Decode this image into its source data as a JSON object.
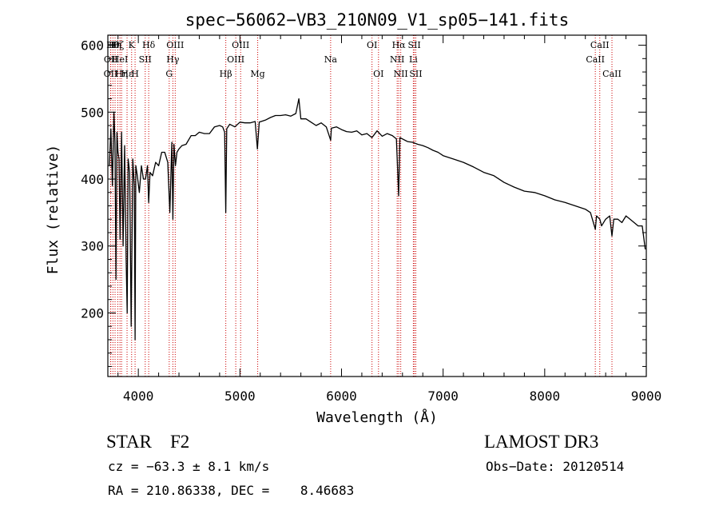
{
  "chart_data": {
    "type": "line",
    "title": "spec−56062−VB3_210N09_V1_sp05−141.fits",
    "xlabel": "Wavelength (Å)",
    "ylabel": "Flux (relative)",
    "xlim": [
      3700,
      9000
    ],
    "ylim": [
      105,
      615
    ],
    "xticks": [
      4000,
      5000,
      6000,
      7000,
      8000,
      9000
    ],
    "yticks": [
      200,
      300,
      400,
      500,
      600
    ],
    "x_minor_step": 200,
    "y_minor_step": 20,
    "line_color": "#000000",
    "marker_color": "#cc0000",
    "series": [
      {
        "name": "spectrum",
        "x": [
          3715,
          3730,
          3745,
          3760,
          3770,
          3780,
          3790,
          3800,
          3810,
          3820,
          3835,
          3850,
          3865,
          3880,
          3890,
          3900,
          3915,
          3930,
          3945,
          3960,
          3968,
          3975,
          3990,
          4010,
          4030,
          4050,
          4070,
          4090,
          4102,
          4115,
          4140,
          4170,
          4200,
          4230,
          4260,
          4290,
          4310,
          4330,
          4340,
          4350,
          4365,
          4380,
          4400,
          4430,
          4470,
          4520,
          4560,
          4600,
          4650,
          4700,
          4750,
          4800,
          4830,
          4850,
          4861,
          4870,
          4900,
          4950,
          5000,
          5050,
          5100,
          5150,
          5172,
          5190,
          5250,
          5300,
          5350,
          5400,
          5450,
          5500,
          5550,
          5580,
          5600,
          5650,
          5700,
          5750,
          5800,
          5850,
          5893,
          5900,
          5950,
          6000,
          6050,
          6100,
          6150,
          6200,
          6250,
          6300,
          6350,
          6400,
          6450,
          6500,
          6540,
          6562,
          6575,
          6600,
          6650,
          6700,
          6750,
          6800,
          6850,
          6900,
          6950,
          7000,
          7100,
          7200,
          7300,
          7400,
          7500,
          7600,
          7700,
          7800,
          7900,
          8000,
          8100,
          8200,
          8300,
          8400,
          8450,
          8498,
          8510,
          8542,
          8560,
          8600,
          8640,
          8662,
          8680,
          8720,
          8760,
          8800,
          8840,
          8880,
          8920,
          8960,
          8990
        ],
        "values": [
          420,
          475,
          390,
          500,
          455,
          250,
          470,
          440,
          430,
          310,
          470,
          300,
          450,
          280,
          200,
          430,
          410,
          180,
          430,
          390,
          160,
          420,
          405,
          380,
          420,
          400,
          400,
          420,
          365,
          410,
          405,
          425,
          420,
          440,
          440,
          425,
          350,
          455,
          340,
          452,
          420,
          440,
          445,
          450,
          452,
          465,
          465,
          470,
          468,
          468,
          478,
          480,
          478,
          470,
          350,
          475,
          482,
          478,
          485,
          484,
          484,
          486,
          445,
          485,
          488,
          492,
          495,
          495,
          496,
          494,
          498,
          520,
          490,
          490,
          485,
          480,
          484,
          478,
          458,
          476,
          478,
          474,
          471,
          470,
          472,
          466,
          468,
          462,
          472,
          464,
          468,
          465,
          460,
          375,
          462,
          460,
          456,
          455,
          452,
          450,
          447,
          443,
          440,
          435,
          430,
          425,
          418,
          410,
          405,
          395,
          388,
          382,
          380,
          375,
          369,
          365,
          360,
          355,
          350,
          325,
          345,
          340,
          330,
          340,
          345,
          315,
          340,
          340,
          335,
          345,
          340,
          335,
          330,
          330,
          295
        ]
      }
    ],
    "lines": [
      {
        "wl": 3727,
        "row": 2,
        "label": "OII"
      },
      {
        "wl": 3729,
        "row": 1,
        "label": "OII"
      },
      {
        "wl": 3750,
        "row": 0,
        "label": "Hθ"
      },
      {
        "wl": 3771,
        "row": 0,
        "label": "Hη"
      },
      {
        "wl": 3798,
        "row": 0,
        "label": "Hζ"
      },
      {
        "wl": 3819,
        "row": 1,
        "label": "HeI"
      },
      {
        "wl": 3835,
        "row": 2,
        "label": "Hη"
      },
      {
        "wl": 3889,
        "row": 2,
        "label": "Hε"
      },
      {
        "wl": 3934,
        "row": 0,
        "label": "K"
      },
      {
        "wl": 3968,
        "row": 2,
        "label": "H"
      },
      {
        "wl": 4068,
        "row": 1,
        "label": "SII"
      },
      {
        "wl": 4102,
        "row": 0,
        "label": "Hδ"
      },
      {
        "wl": 4304,
        "row": 2,
        "label": "G"
      },
      {
        "wl": 4340,
        "row": 1,
        "label": "Hγ"
      },
      {
        "wl": 4363,
        "row": 0,
        "label": "OIII"
      },
      {
        "wl": 4861,
        "row": 2,
        "label": "Hβ"
      },
      {
        "wl": 4959,
        "row": 1,
        "label": "OIII"
      },
      {
        "wl": 5007,
        "row": 0,
        "label": "OIII"
      },
      {
        "wl": 5175,
        "row": 2,
        "label": "Mg"
      },
      {
        "wl": 5893,
        "row": 1,
        "label": "Na"
      },
      {
        "wl": 6300,
        "row": 0,
        "label": "OI"
      },
      {
        "wl": 6364,
        "row": 2,
        "label": "OI"
      },
      {
        "wl": 6548,
        "row": 1,
        "label": "NII"
      },
      {
        "wl": 6563,
        "row": 0,
        "label": "Hα"
      },
      {
        "wl": 6583,
        "row": 2,
        "label": "NII"
      },
      {
        "wl": 6707,
        "row": 1,
        "label": "Li"
      },
      {
        "wl": 6717,
        "row": 0,
        "label": "SII"
      },
      {
        "wl": 6731,
        "row": 2,
        "label": "SII"
      },
      {
        "wl": 8498,
        "row": 1,
        "label": "CaII"
      },
      {
        "wl": 8542,
        "row": 0,
        "label": "CaII"
      },
      {
        "wl": 8662,
        "row": 2,
        "label": "CaII"
      }
    ]
  },
  "info": {
    "class_line": "STAR    F2",
    "cz_line": "cz = −63.3 ± 8.1 km/s",
    "radec_line": "RA = 210.86338, DEC =    8.46683",
    "survey": "LAMOST DR3",
    "obs_date": "Obs−Date: 20120514"
  }
}
